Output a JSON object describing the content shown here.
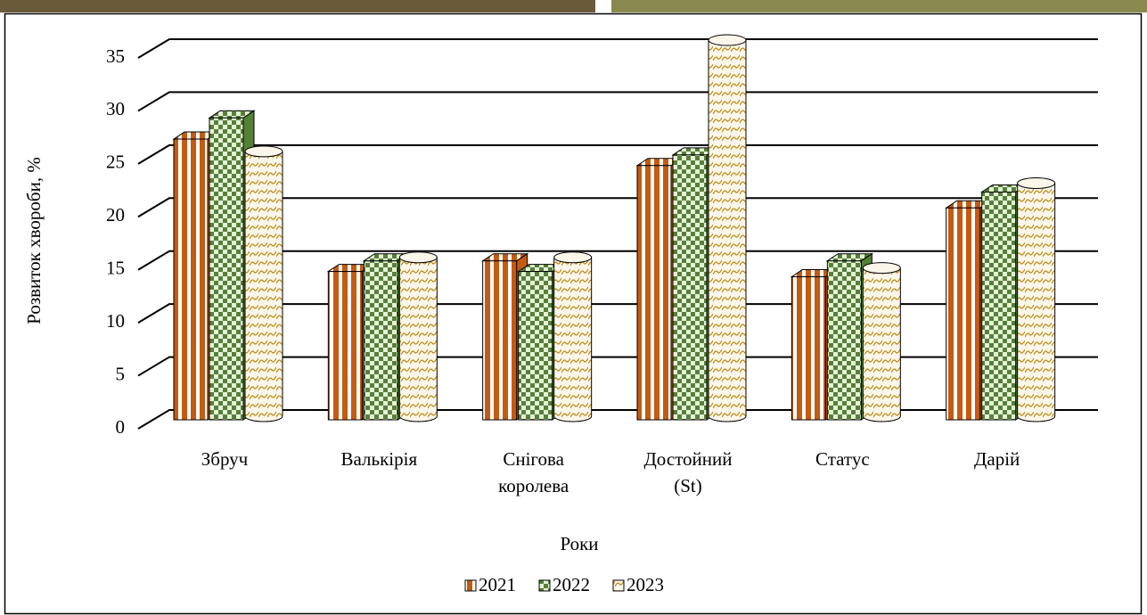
{
  "chart_data": {
    "type": "bar3d",
    "y_label": "Розвиток хвороби, %",
    "legend_title": "Роки",
    "categories": [
      "Збруч",
      "Валькірія",
      "Снігова королева",
      "Достойний (St)",
      "Статус",
      "Дарій"
    ],
    "series": [
      {
        "name": "2021",
        "color": "#c55a11",
        "shape": "box",
        "values": [
          26.5,
          14,
          15,
          24,
          13.5,
          20
        ]
      },
      {
        "name": "2022",
        "color": "#548235",
        "shape": "box",
        "values": [
          28.5,
          15,
          14,
          25,
          15,
          21.5
        ]
      },
      {
        "name": "2023",
        "color": "#b8860b",
        "shape": "cylinder",
        "values": [
          25,
          15,
          15,
          35.5,
          14,
          22
        ]
      }
    ],
    "ylim": [
      0,
      35
    ],
    "yticks": [
      0,
      5,
      10,
      15,
      20,
      25,
      30,
      35
    ],
    "grid": true
  }
}
